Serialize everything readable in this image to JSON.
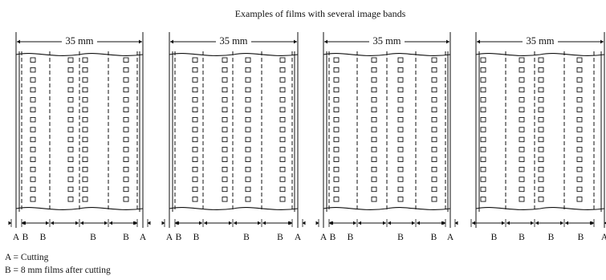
{
  "title": "Examples of films with several image bands",
  "width_label": "35 mm",
  "films": [
    {
      "name": "film-1",
      "cut_labels": [
        "A",
        "B",
        "B",
        "B",
        "B",
        "A"
      ]
    },
    {
      "name": "film-2",
      "cut_labels": [
        "A",
        "B",
        "B",
        "B",
        "B",
        "A"
      ]
    },
    {
      "name": "film-3",
      "cut_labels": [
        "A",
        "B",
        "B",
        "B",
        "B",
        "A"
      ]
    },
    {
      "name": "film-4",
      "cut_labels": [
        "B",
        "B",
        "B",
        "B",
        "A"
      ]
    }
  ],
  "legend": {
    "a": "A = Cutting",
    "b": "B = 8 mm films after cutting"
  }
}
